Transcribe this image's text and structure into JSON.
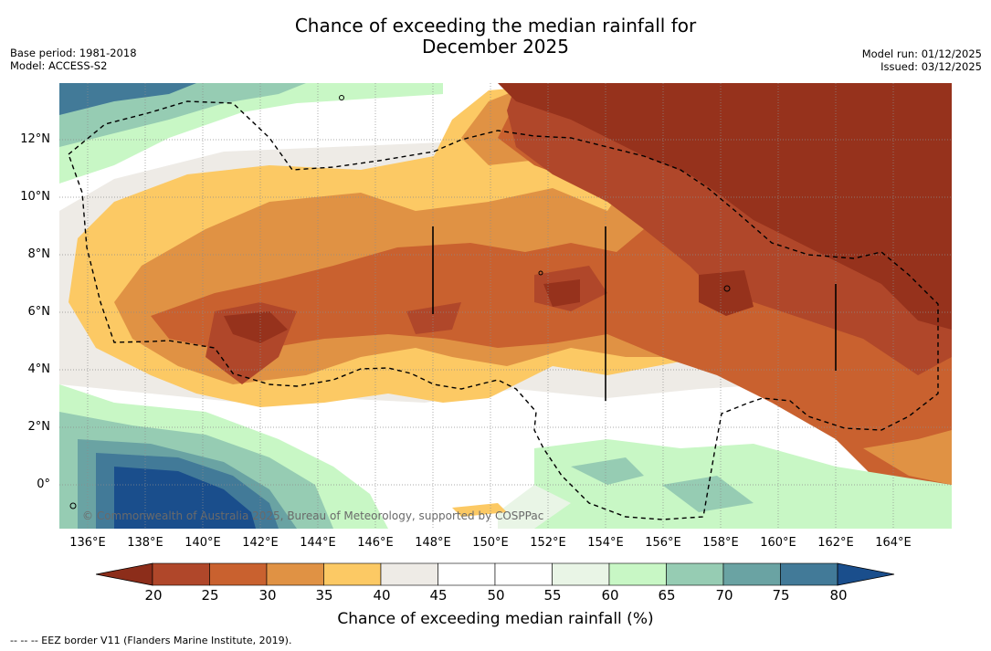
{
  "title": {
    "line1": "Chance of exceeding the median rainfall for",
    "line2": "December 2025"
  },
  "meta": {
    "base_period": "Base period: 1981-2018",
    "model": "Model: ACCESS-S2",
    "model_run": "Model run: 01/12/2025",
    "issued": "Issued: 03/12/2025"
  },
  "map": {
    "lat_labels": [
      "12°N",
      "10°N",
      "8°N",
      "6°N",
      "4°N",
      "2°N",
      "0°"
    ],
    "lon_labels": [
      "136°E",
      "138°E",
      "140°E",
      "142°E",
      "144°E",
      "146°E",
      "148°E",
      "150°E",
      "152°E",
      "154°E",
      "156°E",
      "158°E",
      "160°E",
      "162°E",
      "164°E"
    ],
    "copyright": "© Commonwealth of Australia 2025, Bureau of Meteorology, supported by COSPPac"
  },
  "colorbar": {
    "ticks": [
      "20",
      "25",
      "30",
      "35",
      "40",
      "45",
      "50",
      "55",
      "60",
      "65",
      "70",
      "75",
      "80"
    ],
    "colors": [
      "#8c2d1a",
      "#b0472a",
      "#c9612f",
      "#e09244",
      "#fcc964",
      "#eeebe6",
      "#ffffff",
      "#ffffff",
      "#e9f5e6",
      "#c8f7c5",
      "#96ccb3",
      "#6aa3a3",
      "#427a98",
      "#1a4e8c"
    ],
    "title": "Chance of exceeding median rainfall (%)"
  },
  "legend": "-- -- -- EEZ border V11 (Flanders Marine Institute, 2019)."
}
